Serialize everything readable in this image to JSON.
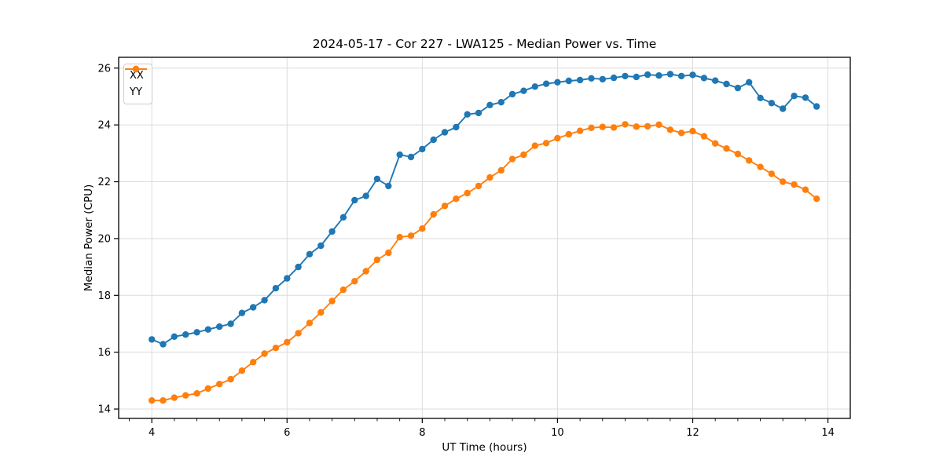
{
  "chart_data": {
    "type": "line",
    "title": "2024-05-17 - Cor 227 - LWA125 - Median Power vs. Time",
    "xlabel": "UT Time (hours)",
    "ylabel": "Median Power (CPU)",
    "xlim": [
      3.51,
      14.33
    ],
    "ylim": [
      13.67,
      26.38
    ],
    "x_major_ticks": [
      4,
      6,
      8,
      10,
      12,
      14
    ],
    "x_minor_tick_step_hours": 0.3333,
    "y_major_ticks": [
      14,
      16,
      18,
      20,
      22,
      24,
      26
    ],
    "grid": "major-both-axes",
    "legend_position": "upper-left",
    "background_color": "#ffffff",
    "grid_color": "#dcdcdc",
    "x": [
      4.0,
      4.167,
      4.333,
      4.5,
      4.667,
      4.833,
      5.0,
      5.167,
      5.333,
      5.5,
      5.667,
      5.833,
      6.0,
      6.167,
      6.333,
      6.5,
      6.667,
      6.833,
      7.0,
      7.167,
      7.333,
      7.5,
      7.667,
      7.833,
      8.0,
      8.167,
      8.333,
      8.5,
      8.667,
      8.833,
      9.0,
      9.167,
      9.333,
      9.5,
      9.667,
      9.833,
      10.0,
      10.167,
      10.333,
      10.5,
      10.667,
      10.833,
      11.0,
      11.167,
      11.333,
      11.5,
      11.667,
      11.833,
      12.0,
      12.167,
      12.333,
      12.5,
      12.667,
      12.833,
      13.0,
      13.167,
      13.333,
      13.5,
      13.667,
      13.833
    ],
    "series": [
      {
        "name": "XX",
        "color": "#1f77b4",
        "values": [
          16.45,
          16.28,
          16.55,
          16.62,
          16.7,
          16.8,
          16.9,
          17.0,
          17.38,
          17.58,
          17.83,
          18.25,
          18.6,
          19.0,
          19.45,
          19.75,
          20.25,
          20.75,
          21.35,
          21.5,
          22.1,
          21.85,
          22.95,
          22.87,
          23.15,
          23.48,
          23.74,
          23.92,
          24.37,
          24.42,
          24.7,
          24.8,
          25.08,
          25.2,
          25.35,
          25.45,
          25.5,
          25.55,
          25.58,
          25.64,
          25.61,
          25.66,
          25.72,
          25.69,
          25.77,
          25.74,
          25.79,
          25.72,
          25.76,
          25.65,
          25.56,
          25.44,
          25.3,
          25.5,
          24.95,
          24.77,
          24.57,
          25.02,
          24.96,
          24.65
        ]
      },
      {
        "name": "YY",
        "color": "#ff7f0e",
        "values": [
          14.3,
          14.3,
          14.4,
          14.48,
          14.55,
          14.72,
          14.88,
          15.05,
          15.35,
          15.65,
          15.95,
          16.15,
          16.35,
          16.67,
          17.03,
          17.4,
          17.8,
          18.2,
          18.5,
          18.85,
          19.25,
          19.5,
          20.05,
          20.1,
          20.35,
          20.85,
          21.15,
          21.4,
          21.6,
          21.85,
          22.15,
          22.4,
          22.8,
          22.95,
          23.27,
          23.36,
          23.53,
          23.67,
          23.79,
          23.9,
          23.93,
          23.91,
          24.02,
          23.94,
          23.95,
          24.01,
          23.83,
          23.72,
          23.78,
          23.6,
          23.35,
          23.17,
          22.98,
          22.75,
          22.52,
          22.28,
          22.0,
          21.9,
          21.72,
          21.4
        ]
      }
    ]
  },
  "legend": {
    "items": [
      {
        "label": "XX",
        "color": "#1f77b4"
      },
      {
        "label": "YY",
        "color": "#ff7f0e"
      }
    ]
  }
}
